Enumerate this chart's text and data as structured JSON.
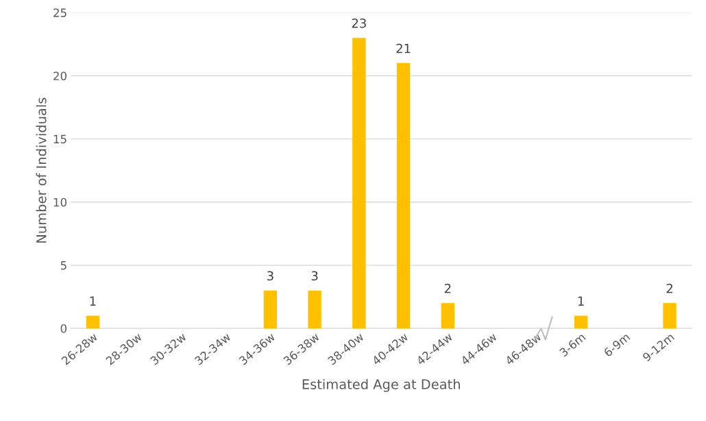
{
  "chart_data": {
    "type": "bar",
    "xlabel": "Estimated Age at Death",
    "ylabel": "Number of Individuals",
    "categories": [
      "26-28w",
      "28-30w",
      "30-32w",
      "32-34w",
      "34-36w",
      "36-38w",
      "38-40w",
      "40-42w",
      "42-44w",
      "44-46w",
      "46-48w",
      "3-6m",
      "6-9m",
      "9-12m"
    ],
    "values": [
      1,
      0,
      0,
      0,
      3,
      3,
      23,
      21,
      2,
      0,
      0,
      1,
      0,
      2
    ],
    "value_labels": [
      "1",
      null,
      null,
      null,
      "3",
      "3",
      "23",
      "21",
      "2",
      null,
      null,
      "1",
      null,
      "2"
    ],
    "color": "#ffc000",
    "ylim": [
      0,
      25
    ],
    "yticks": [
      0,
      5,
      10,
      15,
      20,
      25
    ],
    "grid": "y"
  }
}
